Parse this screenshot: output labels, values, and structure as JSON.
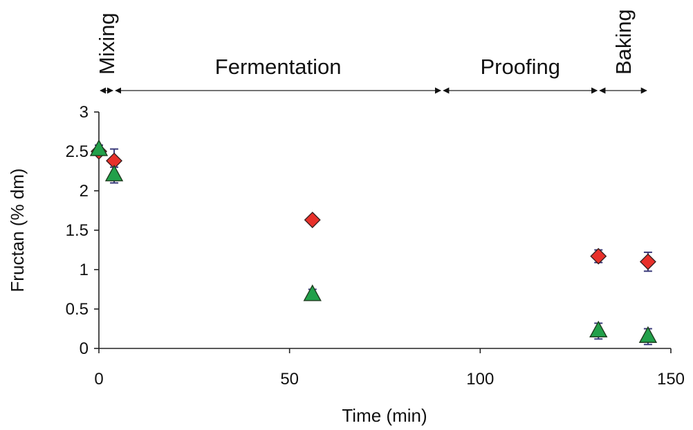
{
  "chart_data": {
    "type": "scatter",
    "title": "",
    "xlabel": "Time (min)",
    "ylabel": "Fructan (% dm)",
    "xlim": [
      0,
      150
    ],
    "ylim": [
      0,
      3
    ],
    "xticks": [
      "0",
      "50",
      "100",
      "150"
    ],
    "xtick_values": [
      0,
      50,
      100,
      150
    ],
    "yticks": [
      "0",
      "0.5",
      "1",
      "1.5",
      "2",
      "2.5",
      "3"
    ],
    "ytick_values": [
      0,
      0.5,
      1,
      1.5,
      2,
      2.5,
      3
    ],
    "grid": false,
    "legend": "none",
    "phases": [
      {
        "label": "Mixing",
        "start": 0,
        "end": 4,
        "orientation": "vertical"
      },
      {
        "label": "Fermentation",
        "start": 4,
        "end": 90,
        "orientation": "horizontal"
      },
      {
        "label": "Proofing",
        "start": 90,
        "end": 131,
        "orientation": "horizontal"
      },
      {
        "label": "Baking",
        "start": 131,
        "end": 144,
        "orientation": "vertical"
      }
    ],
    "series": [
      {
        "marker": "diamond",
        "color": "#e8302a",
        "points": [
          {
            "x": 0,
            "y": 2.5,
            "err": 0.0
          },
          {
            "x": 4,
            "y": 2.38,
            "err": 0.15
          },
          {
            "x": 56,
            "y": 1.63,
            "err": 0.0
          },
          {
            "x": 131,
            "y": 1.17,
            "err": 0.08
          },
          {
            "x": 144,
            "y": 1.1,
            "err": 0.12
          }
        ]
      },
      {
        "marker": "triangle",
        "color": "#22a04a",
        "points": [
          {
            "x": 0,
            "y": 2.52,
            "err": 0.06
          },
          {
            "x": 4,
            "y": 2.2,
            "err": 0.1
          },
          {
            "x": 56,
            "y": 0.68,
            "err": 0.07
          },
          {
            "x": 131,
            "y": 0.22,
            "err": 0.1
          },
          {
            "x": 144,
            "y": 0.15,
            "err": 0.1
          }
        ]
      }
    ]
  }
}
